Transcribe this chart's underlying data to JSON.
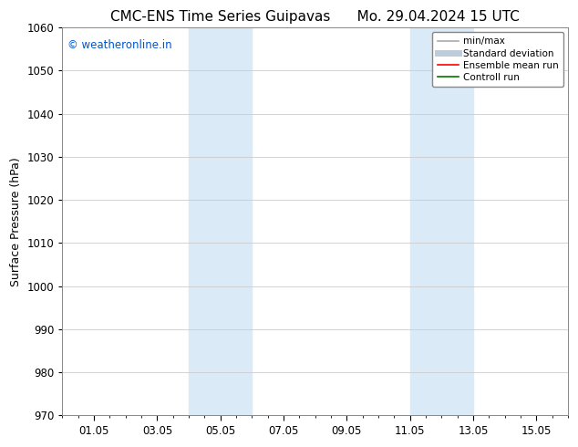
{
  "title_left": "CMC-ENS Time Series Guipavas",
  "title_right": "Mo. 29.04.2024 15 UTC",
  "ylabel": "Surface Pressure (hPa)",
  "ylim": [
    970,
    1060
  ],
  "yticks": [
    970,
    980,
    990,
    1000,
    1010,
    1020,
    1030,
    1040,
    1050,
    1060
  ],
  "xtick_labels": [
    "01.05",
    "03.05",
    "05.05",
    "07.05",
    "09.05",
    "11.05",
    "13.05",
    "15.05"
  ],
  "xtick_positions": [
    1,
    3,
    5,
    7,
    9,
    11,
    13,
    15
  ],
  "xlim": [
    0.0,
    16.0
  ],
  "bg_color": "#ffffff",
  "shaded_bands": [
    {
      "xmin": 4.0,
      "xmax": 6.0,
      "color": "#daeaf7"
    },
    {
      "xmin": 11.0,
      "xmax": 13.0,
      "color": "#daeaf7"
    }
  ],
  "watermark_text": "© weatheronline.in",
  "watermark_color": "#0055cc",
  "watermark_fontsize": 8.5,
  "legend_entries": [
    {
      "label": "min/max",
      "color": "#aaaaaa",
      "lw": 1.2
    },
    {
      "label": "Standard deviation",
      "color": "#bbccdd",
      "lw": 5
    },
    {
      "label": "Ensemble mean run",
      "color": "#ff0000",
      "lw": 1.2
    },
    {
      "label": "Controll run",
      "color": "#007700",
      "lw": 1.2
    }
  ],
  "grid_color": "#cccccc",
  "title_fontsize": 11,
  "ylabel_fontsize": 9,
  "tick_fontsize": 8.5,
  "legend_fontsize": 7.5
}
